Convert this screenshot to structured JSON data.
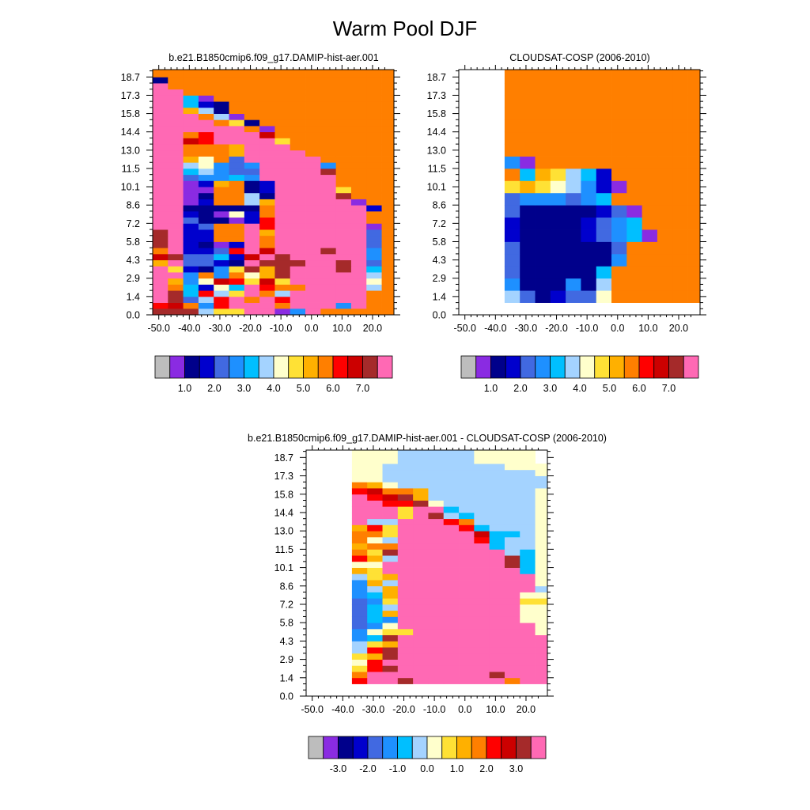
{
  "title": "Warm Pool DJF",
  "palette": [
    "#bdbdbd",
    "#8a2be2",
    "#00008b",
    "#0000cd",
    "#4169e1",
    "#1e90ff",
    "#00bfff",
    "#a4d3ff",
    "#ffffcc",
    "#ffe135",
    "#ffb000",
    "#ff7f00",
    "#ff0000",
    "#cc0000",
    "#a52a2a",
    "#ff69b4"
  ],
  "chart_data": [
    {
      "type": "heatmap",
      "title": "b.e21.B1850cmip6.f09_g17.DAMIP-hist-aer.001",
      "xlim": [
        -52,
        27
      ],
      "ylim": [
        0.0,
        19.3
      ],
      "xticks": [
        "-50.0",
        "-40.0",
        "-30.0",
        "-20.0",
        "-10.0",
        "0.0",
        "10.0",
        "20.0"
      ],
      "xtick_values": [
        -50,
        -40,
        -30,
        -20,
        -10,
        0,
        10,
        20
      ],
      "yticks": [
        "0.0",
        "1.4",
        "2.9",
        "4.3",
        "5.8",
        "7.2",
        "8.6",
        "10.1",
        "11.5",
        "13.0",
        "14.4",
        "15.8",
        "17.3",
        "18.7"
      ],
      "ytick_values": [
        0.0,
        1.44,
        2.88,
        4.32,
        5.76,
        7.2,
        8.64,
        10.08,
        11.52,
        12.96,
        14.4,
        15.84,
        17.28,
        18.72
      ],
      "colorbar_labels": [
        "1.0",
        "2.0",
        "3.0",
        "4.0",
        "5.0",
        "6.0",
        "7.0"
      ],
      "x_edges": [
        -52,
        -47,
        -42,
        -37,
        -32,
        -27,
        -22,
        -17,
        -12,
        -7,
        -2,
        3,
        8,
        13,
        18,
        23,
        27
      ],
      "y_edges": [
        0.0,
        0.5,
        0.96,
        1.44,
        1.92,
        2.4,
        2.88,
        3.36,
        3.84,
        4.32,
        4.8,
        5.28,
        5.76,
        6.24,
        6.72,
        7.2,
        7.68,
        8.16,
        8.64,
        9.12,
        9.6,
        10.08,
        10.56,
        11.04,
        11.52,
        12.0,
        12.48,
        12.96,
        13.44,
        13.92,
        14.4,
        14.88,
        15.36,
        15.84,
        16.32,
        16.8,
        17.28,
        17.76,
        18.24,
        18.72,
        19.3
      ],
      "rows": [
        "EEE799FF15FBBBBB",
        "CDB5CFFFBFFF5FBB",
        "FE47CFBFCFFFFFBB",
        "FE6C79FB7FFFFFBB",
        "FB6386FCBBFFFF7B",
        "FA58DC9D9FFFFF8B",
        "FF5B5B8AEFFFFF7B",
        "F93259EAEFFFEF6B",
        "AF4432FEEEFFEF4B",
        "DE4463DFEFFFFF5B",
        "BF334CFDFFFEFF5B",
        "EF3213FBFFFFFF4B",
        "EF33BBFBFFFFFF4B",
        "EF33BBFAFFFFFF4B",
        "FF34BBFCFFFFFF1B",
        "FF42213CFFFFFFBB",
        "FF32183BFFFFFFBB",
        "FF22222BFFFFFF3B",
        "FF13BB7AFFFFF1BB",
        "FF12BB72FFFFEBBB",
        "FF11BB23FFFF9BBB",
        "FF13AB23FFFFBBBB",
        "FF45565FFFFFBBBB",
        "FF67544FFFFEBBBB",
        "FF78545FFFF5BBBB",
        "FFA8B4FFFFFBBBBB",
        "FFBBBAFFFFBBBBBB",
        "FFBBBAFFFBBBBBBB",
        "FFDCFFFF9BBBBBBB",
        "FFBCFFFDBBBBBBBB",
        "FFFFFFB1BBBBBBBB",
        "FFFFB92BBBBBBBBB",
        "FFFB71BBBBBBBBBB",
        "FFA72BBBBBBBBBBB",
        "FF632BBBBBBBBBBB",
        "FF61BBBBBBBBBBBB",
        "FFBBBBBBBBBBBBBB",
        "FBBBBBBBBBBBBBBB",
        "2BBBBBBBBBBBBBBB",
        "BBBBBBBBBBBBBBBB"
      ]
    },
    {
      "type": "heatmap",
      "title": "CLOUDSAT-COSP (2006-2010)",
      "xlim": [
        -52,
        27
      ],
      "ylim": [
        0.0,
        19.3
      ],
      "xticks": [
        "-50.0",
        "-40.0",
        "-30.0",
        "-20.0",
        "-10.0",
        "0.0",
        "10.0",
        "20.0"
      ],
      "xtick_values": [
        -50,
        -40,
        -30,
        -20,
        -10,
        0,
        10,
        20
      ],
      "yticks": [
        "0.0",
        "1.4",
        "2.9",
        "4.3",
        "5.8",
        "7.2",
        "8.6",
        "10.1",
        "11.5",
        "13.0",
        "14.4",
        "15.8",
        "17.3",
        "18.7"
      ],
      "ytick_values": [
        0.0,
        1.44,
        2.88,
        4.32,
        5.76,
        7.2,
        8.64,
        10.08,
        11.52,
        12.96,
        14.4,
        15.84,
        17.28,
        18.72
      ],
      "colorbar_labels": [
        "1.0",
        "2.0",
        "3.0",
        "4.0",
        "5.0",
        "6.0",
        "7.0"
      ],
      "x_edges": [
        -52,
        -47,
        -42,
        -37,
        -32,
        -27,
        -22,
        -17,
        -12,
        -7,
        -2,
        3,
        8,
        13,
        18,
        23,
        27
      ],
      "y_edges": [
        0.0,
        0.96,
        1.92,
        2.88,
        3.84,
        4.8,
        5.76,
        6.72,
        7.68,
        8.64,
        9.6,
        10.56,
        11.52,
        12.48,
        13.44,
        14.4,
        15.36,
        16.32,
        17.28,
        18.24,
        19.3
      ],
      "rows": [
        "................",
        "...7423448BBBBBB",
        "...5222527BBBBBB",
        "...4222226BBBBBB",
        "...42222225BBBBB",
        "...42222224BBBBB",
        "...3222234561BBB",
        "...322223456BBBB",
        "...422222341BBBB",
        "...4555456BBBBBB",
        "...9A987531BBBBB",
        "...B6A9763BBBBBB",
        "...51BBBBBBBBBBB",
        "...BBBBBBBBBBBBB",
        "...BBBBBBBBBBBBB",
        "...BBBBBBBBBBBBB",
        "...BBBBBBBBBBBBB",
        "...BBBBBBBBBBBBB",
        "...BBBBBBBBBBBBB",
        "...BBBBBBBBBBBBB"
      ]
    },
    {
      "type": "heatmap",
      "title": "b.e21.B1850cmip6.f09_g17.DAMIP-hist-aer.001 - CLOUDSAT-COSP (2006-2010)",
      "xlim": [
        -52,
        27
      ],
      "ylim": [
        0.0,
        19.3
      ],
      "xticks": [
        "-50.0",
        "-40.0",
        "-30.0",
        "-20.0",
        "-10.0",
        "0.0",
        "10.0",
        "20.0"
      ],
      "xtick_values": [
        -50,
        -40,
        -30,
        -20,
        -10,
        0,
        10,
        20
      ],
      "yticks": [
        "0.0",
        "1.4",
        "2.9",
        "4.3",
        "5.8",
        "7.2",
        "8.6",
        "10.1",
        "11.5",
        "13.0",
        "14.4",
        "15.8",
        "17.3",
        "18.7"
      ],
      "ytick_values": [
        0.0,
        1.44,
        2.88,
        4.32,
        5.76,
        7.2,
        8.64,
        10.08,
        11.52,
        12.96,
        14.4,
        15.84,
        17.28,
        18.72
      ],
      "colorbar_labels": [
        "-3.0",
        "-2.0",
        "-1.0",
        "0.0",
        "1.0",
        "2.0",
        "3.0"
      ],
      "x_edges": [
        -52,
        -47,
        -42,
        -37,
        -32,
        -27,
        -22,
        -17,
        -12,
        -7,
        -2,
        3,
        8,
        13,
        18,
        23,
        27
      ],
      "y_edges": [
        0.0,
        0.96,
        1.44,
        1.92,
        2.4,
        2.88,
        3.36,
        3.84,
        4.32,
        4.8,
        5.28,
        5.76,
        6.24,
        6.72,
        7.2,
        7.68,
        8.16,
        8.64,
        9.12,
        9.6,
        10.08,
        10.56,
        11.04,
        11.52,
        12.0,
        12.48,
        12.96,
        13.44,
        13.92,
        14.4,
        14.88,
        15.36,
        15.84,
        16.32,
        16.8,
        17.28,
        17.76,
        18.24,
        19.3
      ],
      "rows": [
        "................",
        "...CFFEFFFFFFBFF",
        "...BFFFFFFFFEFFF",
        "...9CEFFFFFFFFFF",
        "...8CFFFFFFFFFFF",
        "...9AEFFFFFFFFFF",
        "...7CEFFFFFFFFFF",
        "...79AFFFFFFFFFF",
        "...56EFFFFFFFFFF",
        "...5899FFFFFFFF8",
        "...458FFFFFFFFF8",
        "...465FFFFFFFF88",
        "...46AFFFFFFFF88",
        "...467FFFFFFFF88",
        "...459FFFFFFFF99",
        "...56AFFFFFFFF88",
        "...57AFFFFFFFFF7",
        "...5A7FFFFFFFFF8",
        "...79AFFFFFFFFF8",
        "...A9FFFFFFFFF68",
        "...88FFFFFFFFE68",
        "...CA7FFFFFFFE68",
        "...B9EFFFFFFF768",
        "...ABBFFFFFF6778",
        "...B87FFFFFC6778",
        "...BB9FFFFFD6678",
        "...AC9FFFFC67778",
        "...F77FFFCB77778",
        "...FFF9FE7677778",
        "...FFF9FF6777778",
        "...FFCCE87777778",
        "...FCDEA77777778",
        "...CDBBA77777778",
        "...BA877777777778",
        "...88777777777778",
        "...8877777777778.",
        "...8877777777888.",
        "...888777778888..",
        "...888888888888.."
      ]
    }
  ]
}
